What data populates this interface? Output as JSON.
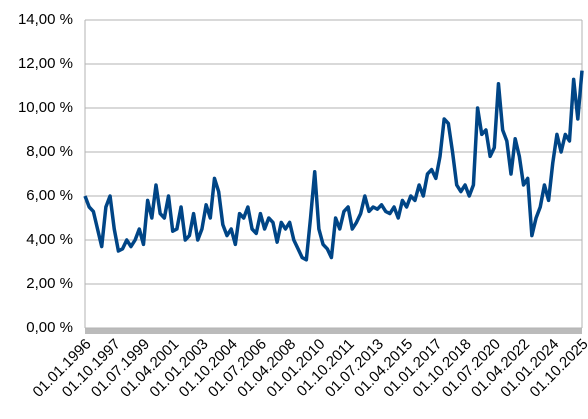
{
  "chart_data": {
    "type": "line",
    "color": "#004586",
    "grid": true,
    "categories": [
      "01.01.1996",
      null,
      null,
      null,
      null,
      null,
      null,
      "01.10.1997",
      null,
      null,
      null,
      null,
      null,
      null,
      "01.07.1999",
      null,
      null,
      null,
      null,
      null,
      null,
      "01.04.2001",
      null,
      null,
      null,
      null,
      null,
      null,
      "01.01.2003",
      null,
      null,
      null,
      null,
      null,
      null,
      "01.10.2004",
      null,
      null,
      null,
      null,
      null,
      null,
      "01.07.2006",
      null,
      null,
      null,
      null,
      null,
      null,
      "01.04.2008",
      null,
      null,
      null,
      null,
      null,
      null,
      "01.01.2010",
      null,
      null,
      null,
      null,
      null,
      null,
      "01.10.2011",
      null,
      null,
      null,
      null,
      null,
      null,
      "01.07.2013",
      null,
      null,
      null,
      null,
      null,
      null,
      "01.04.2015",
      null,
      null,
      null,
      null,
      null,
      null,
      "01.01.2017",
      null,
      null,
      null,
      null,
      null,
      null,
      "01.10.2018",
      null,
      null,
      null,
      null,
      null,
      null,
      "01.07.2020",
      null,
      null,
      null,
      null,
      null,
      null,
      "01.04.2022",
      null,
      null,
      null,
      null,
      null,
      null,
      "01.01.2024",
      null,
      null,
      null,
      null,
      null,
      null,
      "01.10.2025"
    ],
    "values": [
      6.0,
      5.5,
      5.3,
      4.5,
      3.7,
      5.5,
      6.0,
      4.5,
      3.5,
      3.6,
      4.0,
      3.7,
      4.0,
      4.5,
      3.8,
      5.8,
      5.0,
      6.5,
      5.2,
      5.0,
      6.0,
      4.4,
      4.5,
      5.5,
      4.0,
      4.2,
      5.2,
      4.0,
      4.5,
      5.6,
      5.0,
      6.8,
      6.2,
      4.7,
      4.2,
      4.5,
      3.8,
      5.2,
      5.0,
      5.5,
      4.5,
      4.3,
      5.2,
      4.5,
      5.0,
      4.8,
      3.9,
      4.8,
      4.5,
      4.8,
      4.0,
      3.6,
      3.2,
      3.1,
      5.0,
      7.1,
      4.5,
      3.8,
      3.6,
      3.2,
      5.0,
      4.5,
      5.3,
      5.5,
      4.5,
      4.8,
      5.2,
      6.0,
      5.3,
      5.5,
      5.4,
      5.6,
      5.3,
      5.2,
      5.5,
      5.0,
      5.8,
      5.5,
      6.0,
      5.8,
      6.5,
      6.0,
      7.0,
      7.2,
      6.8,
      7.8,
      9.5,
      9.3,
      8.0,
      6.5,
      6.2,
      6.5,
      6.0,
      6.5,
      10.0,
      8.8,
      9.0,
      7.8,
      8.2,
      11.1,
      9.0,
      8.5,
      7.0,
      8.6,
      7.8,
      6.5,
      6.8,
      4.2,
      5.0,
      5.5,
      6.5,
      5.8,
      7.5,
      8.8,
      8.0,
      8.8,
      8.5,
      11.3,
      9.5,
      11.7
    ],
    "ylim": [
      0,
      14
    ],
    "yticks": [
      {
        "value": 0,
        "label": "0,00 %"
      },
      {
        "value": 2,
        "label": "2,00 %"
      },
      {
        "value": 4,
        "label": "4,00 %"
      },
      {
        "value": 6,
        "label": "6,00 %"
      },
      {
        "value": 8,
        "label": "8,00 %"
      },
      {
        "value": 10,
        "label": "10,00 %"
      },
      {
        "value": 12,
        "label": "12,00 %"
      },
      {
        "value": 14,
        "label": "14,00 %"
      }
    ]
  }
}
